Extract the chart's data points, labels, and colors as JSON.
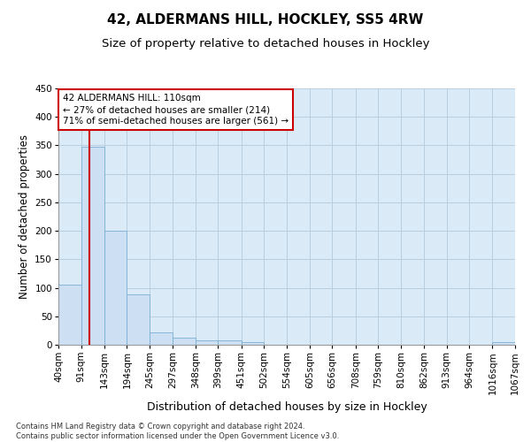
{
  "title": "42, ALDERMANS HILL, HOCKLEY, SS5 4RW",
  "subtitle": "Size of property relative to detached houses in Hockley",
  "xlabel": "Distribution of detached houses by size in Hockley",
  "ylabel": "Number of detached properties",
  "footer_line1": "Contains HM Land Registry data © Crown copyright and database right 2024.",
  "footer_line2": "Contains public sector information licensed under the Open Government Licence v3.0.",
  "bar_edges": [
    40,
    91,
    143,
    194,
    245,
    297,
    348,
    399,
    451,
    502,
    554,
    605,
    656,
    708,
    759,
    810,
    862,
    913,
    964,
    1016,
    1067
  ],
  "bar_heights": [
    105,
    347,
    200,
    88,
    22,
    13,
    8,
    8,
    5,
    0,
    0,
    0,
    0,
    0,
    0,
    0,
    0,
    0,
    0,
    4
  ],
  "bar_color": "#ccdff3",
  "bar_edge_color": "#7aafd4",
  "property_size": 110,
  "vline_color": "#cc0000",
  "annotation_line1": "42 ALDERMANS HILL: 110sqm",
  "annotation_line2": "← 27% of detached houses are smaller (214)",
  "annotation_line3": "71% of semi-detached houses are larger (561) →",
  "annotation_box_color": "#ffffff",
  "annotation_box_edge": "#cc0000",
  "ylim": [
    0,
    450
  ],
  "yticks": [
    0,
    50,
    100,
    150,
    200,
    250,
    300,
    350,
    400,
    450
  ],
  "background_color": "#ffffff",
  "plot_bg_color": "#daeaf6",
  "grid_color": "#b8cfe0",
  "title_fontsize": 11,
  "subtitle_fontsize": 9.5,
  "tick_label_fontsize": 7.5,
  "ylabel_fontsize": 8.5,
  "xlabel_fontsize": 9
}
